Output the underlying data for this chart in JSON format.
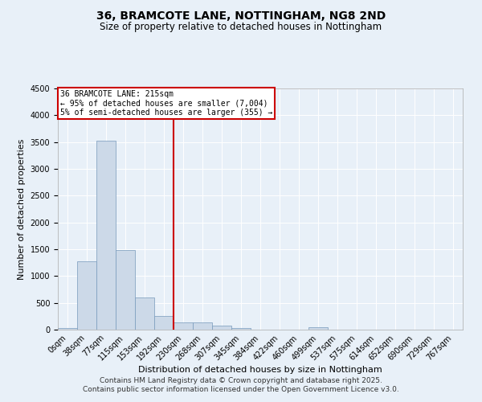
{
  "title": "36, BRAMCOTE LANE, NOTTINGHAM, NG8 2ND",
  "subtitle": "Size of property relative to detached houses in Nottingham",
  "xlabel": "Distribution of detached houses by size in Nottingham",
  "ylabel": "Number of detached properties",
  "bar_color": "#ccd9e8",
  "bar_edge_color": "#7799bb",
  "bin_labels": [
    "0sqm",
    "38sqm",
    "77sqm",
    "115sqm",
    "153sqm",
    "192sqm",
    "230sqm",
    "268sqm",
    "307sqm",
    "345sqm",
    "384sqm",
    "422sqm",
    "460sqm",
    "499sqm",
    "537sqm",
    "575sqm",
    "614sqm",
    "652sqm",
    "690sqm",
    "729sqm",
    "767sqm"
  ],
  "bar_values": [
    30,
    1270,
    3530,
    1490,
    600,
    250,
    140,
    130,
    80,
    25,
    5,
    0,
    0,
    40,
    0,
    0,
    0,
    0,
    0,
    0,
    0
  ],
  "ylim": [
    0,
    4500
  ],
  "yticks": [
    0,
    500,
    1000,
    1500,
    2000,
    2500,
    3000,
    3500,
    4000,
    4500
  ],
  "property_line_x": 6.0,
  "property_line_label": "36 BRAMCOTE LANE: 215sqm",
  "annotation_line1": "← 95% of detached houses are smaller (7,004)",
  "annotation_line2": "5% of semi-detached houses are larger (355) →",
  "annotation_box_color": "#ffffff",
  "annotation_box_edge_color": "#cc0000",
  "vline_color": "#cc0000",
  "footer1": "Contains HM Land Registry data © Crown copyright and database right 2025.",
  "footer2": "Contains public sector information licensed under the Open Government Licence v3.0.",
  "background_color": "#e8f0f8",
  "grid_color": "#ffffff",
  "title_fontsize": 10,
  "subtitle_fontsize": 8.5,
  "axis_label_fontsize": 8,
  "tick_fontsize": 7,
  "annotation_fontsize": 7,
  "footer_fontsize": 6.5
}
